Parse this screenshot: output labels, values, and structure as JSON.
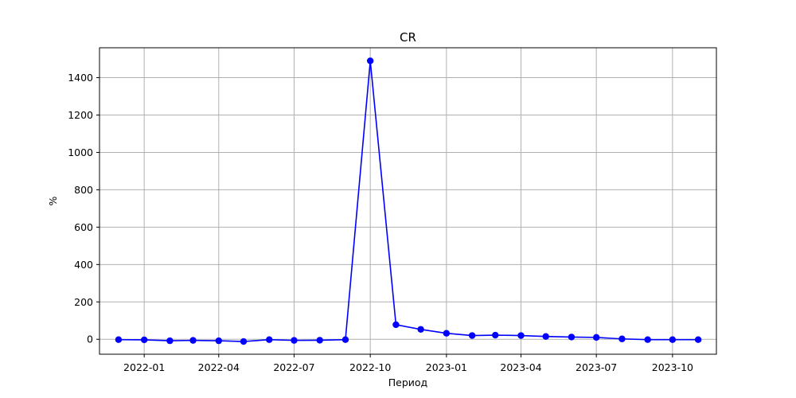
{
  "chart_data": {
    "type": "line",
    "title": "CR",
    "xlabel": "Период",
    "ylabel": "%",
    "x_ticks": [
      "2022-01",
      "2022-04",
      "2022-07",
      "2022-10",
      "2023-01",
      "2023-04",
      "2023-07",
      "2023-10"
    ],
    "y_ticks": [
      0,
      200,
      400,
      600,
      800,
      1000,
      1200,
      1400
    ],
    "xlim": [
      "2021-11-08",
      "2023-11-23"
    ],
    "ylim": [
      -80,
      1560
    ],
    "grid": true,
    "series": [
      {
        "color": "#0000ff",
        "marker": "circle",
        "points": [
          {
            "x": "2021-12-01",
            "y": -2
          },
          {
            "x": "2022-01-01",
            "y": -3
          },
          {
            "x": "2022-02-01",
            "y": -8
          },
          {
            "x": "2022-03-01",
            "y": -6
          },
          {
            "x": "2022-04-01",
            "y": -8
          },
          {
            "x": "2022-05-01",
            "y": -12
          },
          {
            "x": "2022-06-01",
            "y": -2
          },
          {
            "x": "2022-07-01",
            "y": -6
          },
          {
            "x": "2022-08-01",
            "y": -5
          },
          {
            "x": "2022-09-01",
            "y": -2
          },
          {
            "x": "2022-10-01",
            "y": 1490
          },
          {
            "x": "2022-11-01",
            "y": 78
          },
          {
            "x": "2022-12-01",
            "y": 53
          },
          {
            "x": "2023-01-01",
            "y": 32
          },
          {
            "x": "2023-02-01",
            "y": 20
          },
          {
            "x": "2023-03-01",
            "y": 22
          },
          {
            "x": "2023-04-01",
            "y": 20
          },
          {
            "x": "2023-05-01",
            "y": 15
          },
          {
            "x": "2023-06-01",
            "y": 12
          },
          {
            "x": "2023-07-01",
            "y": 10
          },
          {
            "x": "2023-08-01",
            "y": 2
          },
          {
            "x": "2023-09-01",
            "y": -2
          },
          {
            "x": "2023-10-01",
            "y": -2
          },
          {
            "x": "2023-11-01",
            "y": -2
          }
        ]
      }
    ]
  }
}
